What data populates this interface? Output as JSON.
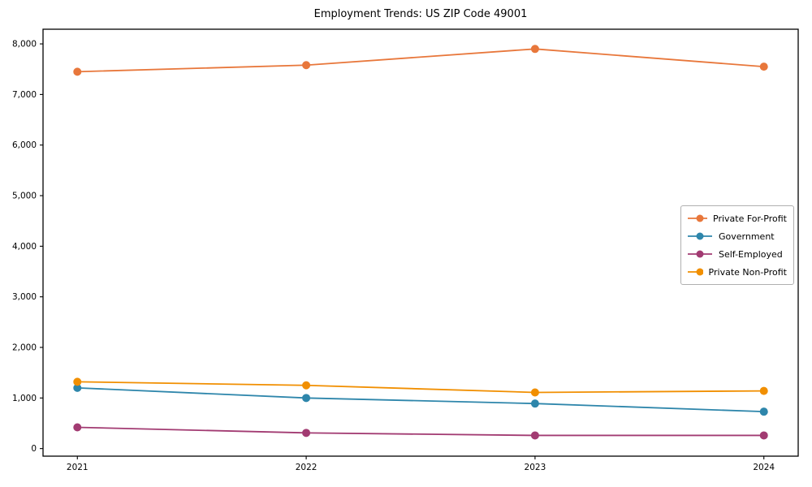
{
  "chart_data": {
    "type": "line",
    "title": "Employment Trends: US ZIP Code 49001",
    "x": [
      2021,
      2022,
      2023,
      2024
    ],
    "x_tick_labels": [
      "2021",
      "2022",
      "2023",
      "2024"
    ],
    "y_ticks": [
      0,
      1000,
      2000,
      3000,
      4000,
      5000,
      6000,
      7000,
      8000
    ],
    "y_tick_labels": [
      "0",
      "1,000",
      "2,000",
      "3,000",
      "4,000",
      "5,000",
      "6,000",
      "7,000",
      "8,000"
    ],
    "ylim": [
      0,
      8000
    ],
    "xlabel": "",
    "ylabel": "",
    "grid": false,
    "legend_position": "center-right",
    "marker": "circle",
    "background_color": "#ffffff",
    "axis_color": "#000000",
    "series": [
      {
        "name": "Private For-Profit",
        "color": "#E8773B",
        "values": [
          7450,
          7580,
          7900,
          7550
        ]
      },
      {
        "name": "Government",
        "color": "#2E86AB",
        "values": [
          1200,
          1000,
          890,
          730
        ]
      },
      {
        "name": "Self-Employed",
        "color": "#A23B72",
        "values": [
          420,
          310,
          260,
          260
        ]
      },
      {
        "name": "Private Non-Profit",
        "color": "#F18F01",
        "values": [
          1320,
          1250,
          1110,
          1140
        ]
      }
    ]
  }
}
